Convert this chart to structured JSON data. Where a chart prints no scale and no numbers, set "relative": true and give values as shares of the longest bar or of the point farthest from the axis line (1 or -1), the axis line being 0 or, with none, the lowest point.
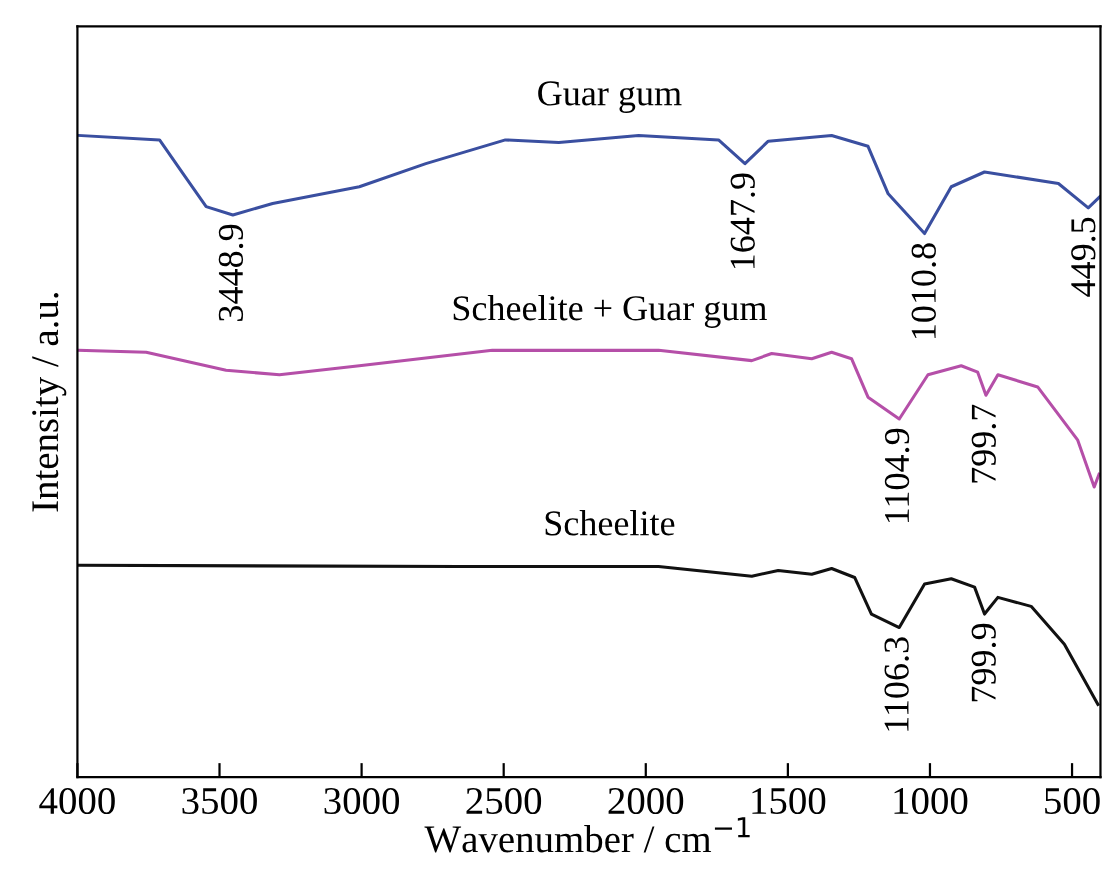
{
  "chart_data": {
    "type": "line",
    "relative": true,
    "xlabel": "Wavenumber / cm$^{−1}$",
    "ylabel": "Intensity / a.u.",
    "xlim": [
      4000,
      400
    ],
    "xticks": [
      4000,
      3500,
      3000,
      2500,
      2000,
      1500,
      1000,
      500
    ],
    "tick_labels": "x",
    "grid": false,
    "legend": false,
    "line_style": "solid",
    "marker": "none",
    "series": [
      {
        "name": "Guar gum",
        "color": "#3a4fa0",
        "x": [
          3997,
          3711,
          3629,
          3547,
          3453,
          3313,
          3008,
          2774,
          2494,
          2306,
          2025,
          1744,
          1651,
          1569,
          1346,
          1218,
          1147,
          1019,
          925,
          808,
          548,
          443,
          403
        ],
        "values": [
          1.0,
          0.993,
          0.941,
          0.889,
          0.876,
          0.894,
          0.92,
          0.956,
          0.993,
          0.989,
          1.0,
          0.993,
          0.956,
          0.991,
          1.0,
          0.983,
          0.909,
          0.847,
          0.92,
          0.943,
          0.925,
          0.887,
          0.904
        ]
      },
      {
        "name": "Scheelite + Guar gum",
        "color": "#b54fa8",
        "x": [
          3997,
          3758,
          3477,
          3289,
          3008,
          2540,
          1955,
          1627,
          1557,
          1416,
          1346,
          1276,
          1218,
          1108,
          1007,
          890,
          832,
          803,
          761,
          621,
          480,
          422,
          405
        ],
        "values": [
          0.665,
          0.662,
          0.634,
          0.627,
          0.641,
          0.665,
          0.665,
          0.649,
          0.66,
          0.652,
          0.662,
          0.652,
          0.592,
          0.558,
          0.627,
          0.641,
          0.631,
          0.595,
          0.627,
          0.608,
          0.525,
          0.452,
          0.472
        ]
      },
      {
        "name": "Scheelite",
        "color": "#111111",
        "x": [
          3997,
          2657,
          1955,
          1627,
          1534,
          1416,
          1346,
          1265,
          1206,
          1108,
          1019,
          925,
          843,
          808,
          761,
          644,
          527,
          409
        ],
        "values": [
          0.33,
          0.328,
          0.328,
          0.313,
          0.322,
          0.316,
          0.325,
          0.311,
          0.254,
          0.233,
          0.301,
          0.309,
          0.296,
          0.254,
          0.28,
          0.266,
          0.207,
          0.113
        ]
      }
    ],
    "annotations": [
      {
        "text": "3448.9",
        "x": 3448.9,
        "y": 0.876
      },
      {
        "text": "1647.9",
        "x": 1647.9,
        "y": 0.956
      },
      {
        "text": "1010.8",
        "x": 1010.8,
        "y": 0.847
      },
      {
        "text": "449.5",
        "x": 449.5,
        "y": 0.887
      },
      {
        "text": "1104.9",
        "x": 1104.9,
        "y": 0.558
      },
      {
        "text": "799.7",
        "x": 799.7,
        "y": 0.595
      },
      {
        "text": "1106.3",
        "x": 1106.3,
        "y": 0.233
      },
      {
        "text": "799.9",
        "x": 799.9,
        "y": 0.254
      }
    ]
  }
}
